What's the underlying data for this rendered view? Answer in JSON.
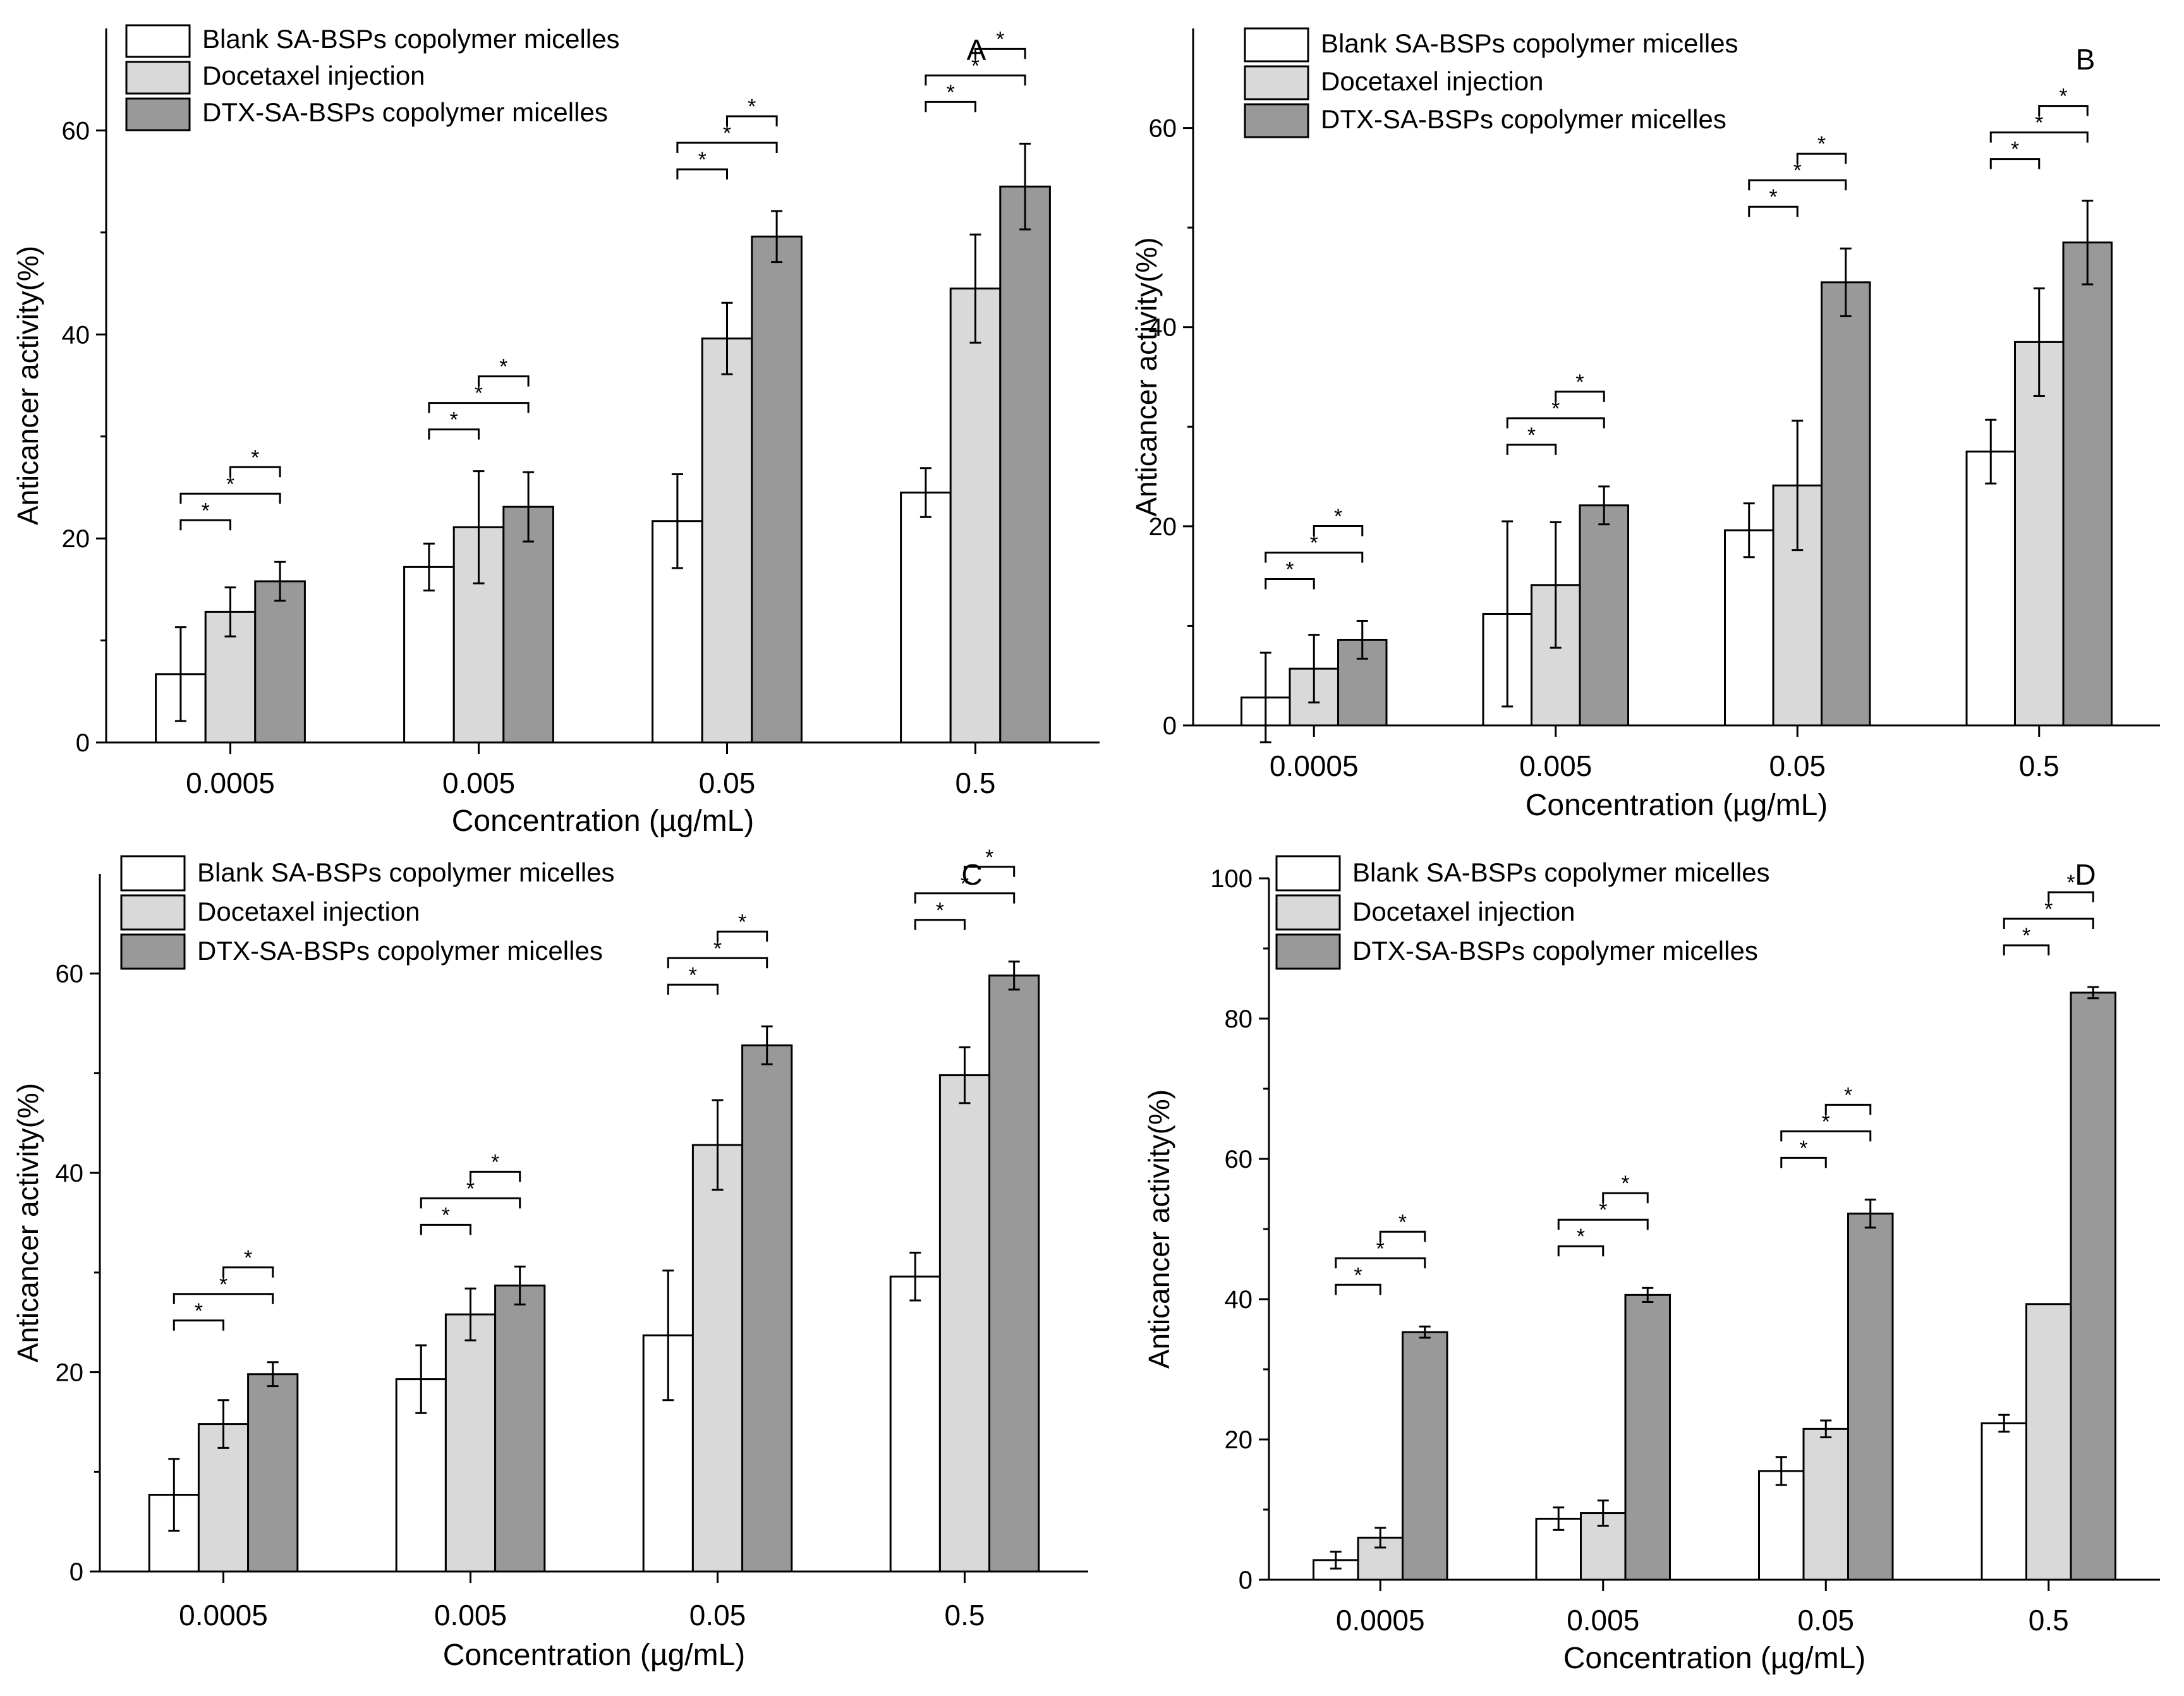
{
  "colors": {
    "blank": "#ffffff",
    "injection": "#d9d9d9",
    "micelles": "#999999",
    "stroke": "#000000"
  },
  "chart_data": [
    {
      "type": "bar",
      "panel_label": "A",
      "xlabel": "Concentration (µg/mL)",
      "ylabel": "Anticancer activity(%)",
      "ylim": [
        0,
        70
      ],
      "yticks": [
        0,
        20,
        40,
        60
      ],
      "categories": [
        "0.0005",
        "0.005",
        "0.05",
        "0.5"
      ],
      "legend_position": "top-left",
      "significance_marker": "*",
      "series": [
        {
          "name": "Blank SA-BSPs copolymer micelles",
          "values": [
            6.7,
            17.2,
            21.7,
            24.5
          ],
          "errors": [
            4.6,
            2.3,
            4.6,
            2.4
          ]
        },
        {
          "name": "Docetaxel injection",
          "values": [
            12.8,
            21.1,
            39.6,
            44.5
          ],
          "errors": [
            2.4,
            5.5,
            3.5,
            5.3
          ]
        },
        {
          "name": "DTX-SA-BSPs copolymer micelles",
          "values": [
            15.8,
            23.1,
            49.6,
            54.5
          ],
          "errors": [
            1.9,
            3.4,
            2.5,
            4.2
          ]
        }
      ]
    },
    {
      "type": "bar",
      "panel_label": "B",
      "xlabel": "Concentration (µg/mL)",
      "ylabel": "Anticancer activity(%)",
      "ylim": [
        0,
        70
      ],
      "yticks": [
        0,
        20,
        40,
        60
      ],
      "categories": [
        "0.0005",
        "0.005",
        "0.05",
        "0.5"
      ],
      "legend_position": "top-left",
      "significance_marker": "*",
      "series": [
        {
          "name": "Blank SA-BSPs copolymer micelles",
          "values": [
            2.8,
            11.2,
            19.6,
            27.5
          ],
          "errors": [
            4.5,
            9.3,
            2.7,
            3.2
          ]
        },
        {
          "name": "Docetaxel injection",
          "values": [
            5.7,
            14.1,
            24.1,
            38.5
          ],
          "errors": [
            3.4,
            6.3,
            6.5,
            5.4
          ]
        },
        {
          "name": "DTX-SA-BSPs copolymer micelles",
          "values": [
            8.6,
            22.1,
            44.5,
            48.5
          ],
          "errors": [
            1.9,
            1.9,
            3.4,
            4.2
          ]
        }
      ]
    },
    {
      "type": "bar",
      "panel_label": "C",
      "xlabel": "Concentration (µg/mL)",
      "ylabel": "Anticancer activity(%)",
      "ylim": [
        0,
        70
      ],
      "yticks": [
        0,
        20,
        40,
        60
      ],
      "categories": [
        "0.0005",
        "0.005",
        "0.05",
        "0.5"
      ],
      "legend_position": "top-left",
      "significance_marker": "*",
      "series": [
        {
          "name": "Blank SA-BSPs copolymer micelles",
          "values": [
            7.7,
            19.3,
            23.7,
            29.6
          ],
          "errors": [
            3.6,
            3.4,
            6.5,
            2.4
          ]
        },
        {
          "name": "Docetaxel injection",
          "values": [
            14.8,
            25.8,
            42.8,
            49.8
          ],
          "errors": [
            2.4,
            2.6,
            4.5,
            2.8
          ]
        },
        {
          "name": "DTX-SA-BSPs copolymer micelles",
          "values": [
            19.8,
            28.7,
            52.8,
            59.8
          ],
          "errors": [
            1.2,
            1.9,
            1.9,
            1.4
          ]
        }
      ]
    },
    {
      "type": "bar",
      "panel_label": "D",
      "xlabel": "Concentration (µg/mL)",
      "ylabel": "Anticancer activity(%)",
      "ylim": [
        0,
        100
      ],
      "yticks": [
        0,
        20,
        40,
        60,
        80,
        100
      ],
      "categories": [
        "0.0005",
        "0.005",
        "0.05",
        "0.5"
      ],
      "legend_position": "top-left",
      "significance_marker": "*",
      "series": [
        {
          "name": "Blank SA-BSPs copolymer micelles",
          "values": [
            2.8,
            8.7,
            15.5,
            22.3
          ],
          "errors": [
            1.2,
            1.6,
            2.0,
            1.2
          ]
        },
        {
          "name": "Docetaxel injection",
          "values": [
            6.0,
            9.5,
            21.5,
            39.3
          ],
          "errors": [
            1.4,
            1.8,
            1.2,
            0
          ]
        },
        {
          "name": "DTX-SA-BSPs copolymer micelles",
          "values": [
            35.3,
            40.6,
            52.2,
            83.7
          ],
          "errors": [
            0.8,
            1.0,
            2.0,
            0.8
          ]
        }
      ]
    }
  ]
}
